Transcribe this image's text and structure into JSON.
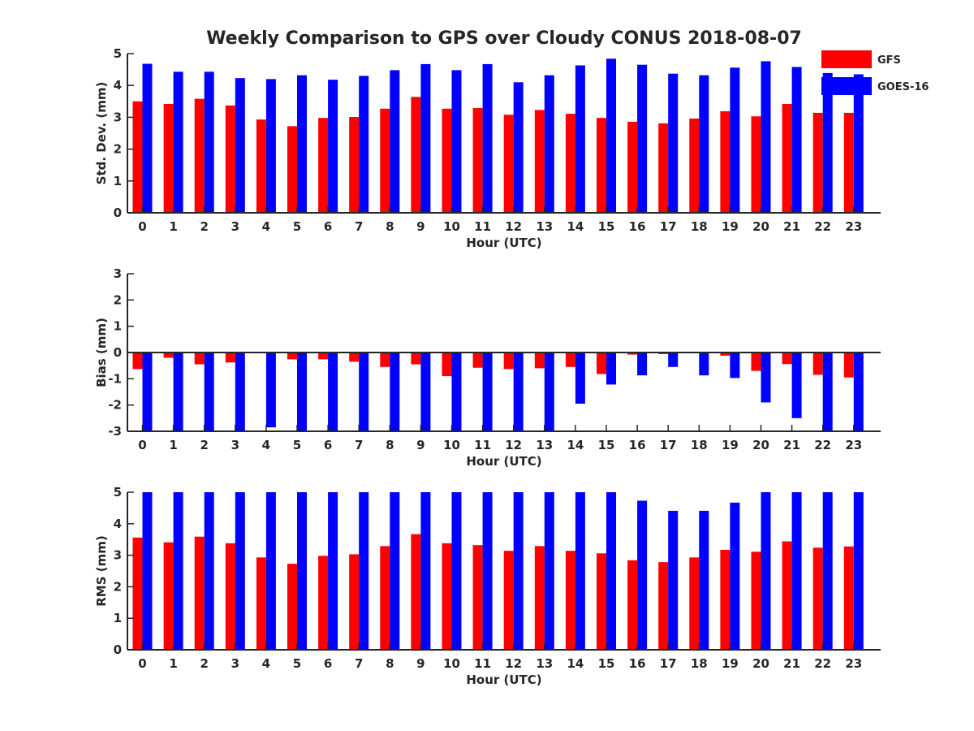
{
  "figure": {
    "title": "Weekly Comparison to GPS over Cloudy CONUS 2018-08-07"
  },
  "legend": {
    "position": "top-right",
    "entries": [
      {
        "name": "GFS",
        "color": "#ff0000"
      },
      {
        "name": "GOES-16",
        "color": "#0000ff"
      }
    ]
  },
  "chart_data": [
    {
      "type": "bar",
      "xlabel": "Hour (UTC)",
      "ylabel": "Std. Dev. (mm)",
      "ylim": [
        0,
        5
      ],
      "yticks": [
        0,
        1,
        2,
        3,
        4,
        5
      ],
      "categories": [
        "0",
        "1",
        "2",
        "3",
        "4",
        "5",
        "6",
        "7",
        "8",
        "9",
        "10",
        "11",
        "12",
        "13",
        "14",
        "15",
        "16",
        "17",
        "18",
        "19",
        "20",
        "21",
        "22",
        "23"
      ],
      "series": [
        {
          "name": "GFS",
          "color": "#ff0000",
          "values": [
            3.5,
            3.42,
            3.58,
            3.37,
            2.93,
            2.72,
            2.98,
            3.01,
            3.27,
            3.64,
            3.27,
            3.29,
            3.08,
            3.23,
            3.11,
            2.98,
            2.86,
            2.81,
            2.96,
            3.19,
            3.03,
            3.42,
            3.14,
            3.14
          ]
        },
        {
          "name": "GOES-16",
          "color": "#0000ff",
          "values": [
            4.68,
            4.43,
            4.43,
            4.23,
            4.2,
            4.32,
            4.18,
            4.3,
            4.48,
            4.67,
            4.48,
            4.67,
            4.1,
            4.32,
            4.63,
            4.84,
            4.65,
            4.37,
            4.32,
            4.56,
            4.76,
            4.58,
            4.39,
            4.35
          ]
        }
      ]
    },
    {
      "type": "bar",
      "xlabel": "Hour (UTC)",
      "ylabel": "Bias (mm)",
      "ylim": [
        -3,
        3
      ],
      "yticks": [
        -3,
        -2,
        -1,
        0,
        1,
        2,
        3
      ],
      "zero_line": true,
      "categories": [
        "0",
        "1",
        "2",
        "3",
        "4",
        "5",
        "6",
        "7",
        "8",
        "9",
        "10",
        "11",
        "12",
        "13",
        "14",
        "15",
        "16",
        "17",
        "18",
        "19",
        "20",
        "21",
        "22",
        "23"
      ],
      "series": [
        {
          "name": "GFS",
          "color": "#ff0000",
          "values": [
            -0.63,
            -0.2,
            -0.45,
            -0.38,
            -0.02,
            -0.26,
            -0.26,
            -0.35,
            -0.55,
            -0.45,
            -0.9,
            -0.58,
            -0.63,
            -0.6,
            -0.55,
            -0.82,
            -0.08,
            -0.06,
            -0.02,
            -0.12,
            -0.7,
            -0.44,
            -0.85,
            -0.95
          ]
        },
        {
          "name": "GOES-16",
          "color": "#0000ff",
          "values": [
            -3.0,
            -3.0,
            -3.0,
            -3.0,
            -2.85,
            -3.0,
            -3.0,
            -3.0,
            -3.0,
            -3.0,
            -3.0,
            -3.0,
            -3.0,
            -3.0,
            -1.95,
            -1.22,
            -0.87,
            -0.55,
            -0.87,
            -0.97,
            -1.9,
            -2.5,
            -3.0,
            -3.0
          ]
        }
      ]
    },
    {
      "type": "bar",
      "xlabel": "Hour (UTC)",
      "ylabel": "RMS (mm)",
      "ylim": [
        0,
        5
      ],
      "yticks": [
        0,
        1,
        2,
        3,
        4,
        5
      ],
      "categories": [
        "0",
        "1",
        "2",
        "3",
        "4",
        "5",
        "6",
        "7",
        "8",
        "9",
        "10",
        "11",
        "12",
        "13",
        "14",
        "15",
        "16",
        "17",
        "18",
        "19",
        "20",
        "21",
        "22",
        "23"
      ],
      "series": [
        {
          "name": "GFS",
          "color": "#ff0000",
          "values": [
            3.56,
            3.41,
            3.59,
            3.38,
            2.93,
            2.73,
            2.98,
            3.03,
            3.29,
            3.67,
            3.38,
            3.32,
            3.14,
            3.29,
            3.14,
            3.06,
            2.84,
            2.78,
            2.93,
            3.17,
            3.11,
            3.44,
            3.24,
            3.28
          ]
        },
        {
          "name": "GOES-16",
          "color": "#0000ff",
          "values": [
            5.0,
            5.0,
            5.0,
            5.0,
            5.0,
            5.0,
            5.0,
            5.0,
            5.0,
            5.0,
            5.0,
            5.0,
            5.0,
            5.0,
            5.0,
            5.0,
            4.73,
            4.41,
            4.41,
            4.67,
            5.0,
            5.0,
            5.0,
            5.0
          ]
        }
      ]
    }
  ]
}
